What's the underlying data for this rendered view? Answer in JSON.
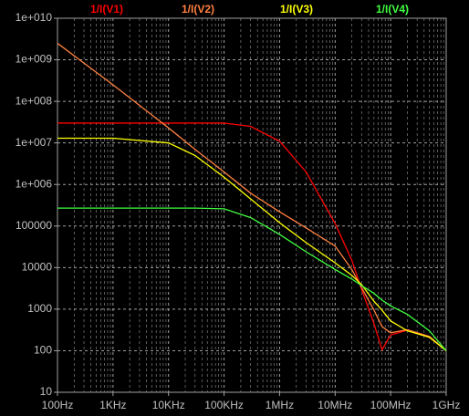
{
  "chart_data": {
    "type": "line",
    "log_x": true,
    "log_y": true,
    "grid": true,
    "minor_grid": true,
    "xlim": [
      100,
      1000000000
    ],
    "ylim": [
      10,
      10000000000
    ],
    "xticks": [
      {
        "value": 100,
        "label": "100Hz"
      },
      {
        "value": 1000,
        "label": "1KHz"
      },
      {
        "value": 10000,
        "label": "10KHz"
      },
      {
        "value": 100000,
        "label": "100KHz"
      },
      {
        "value": 1000000,
        "label": "1MHz"
      },
      {
        "value": 10000000,
        "label": "10MHz"
      },
      {
        "value": 100000000,
        "label": "100MHz"
      },
      {
        "value": 1000000000,
        "label": "1GHz"
      }
    ],
    "yticks": [
      10,
      100,
      1000,
      10000,
      100000,
      {
        "value": 1000000,
        "label": "1e+006"
      },
      {
        "value": 10000000,
        "label": "1e+007"
      },
      {
        "value": 100000000,
        "label": "1e+008"
      },
      {
        "value": 1000000000,
        "label": "1e+009"
      },
      {
        "value": 10000000000,
        "label": "1e+010"
      }
    ],
    "x": [
      100,
      1000,
      10000,
      30000,
      100000,
      300000,
      1000000,
      3000000,
      10000000,
      20000000,
      30000000,
      50000000,
      70000000,
      100000000,
      200000000,
      500000000,
      1000000000
    ],
    "series": [
      {
        "name": "1/I(V1)",
        "color": "#ff0000",
        "values": [
          30000000,
          30000000,
          30000000,
          30000000,
          30000000,
          25000000,
          11000000,
          2000000,
          115000,
          15000,
          3000,
          450,
          105,
          240,
          310,
          210,
          100
        ]
      },
      {
        "name": "1/I(V2)",
        "color": "#ff8040",
        "values": [
          2500000000,
          250000000,
          23000000,
          7000000,
          2000000,
          620000,
          220000,
          90000,
          33000,
          9000,
          3300,
          950,
          380,
          270,
          320,
          220,
          100
        ]
      },
      {
        "name": "1/I(V3)",
        "color": "#ffff00",
        "values": [
          13000000,
          13000000,
          10000000,
          5000000,
          1500000,
          450000,
          120000,
          40000,
          13000,
          6500,
          3900,
          1550,
          940,
          520,
          300,
          210,
          100
        ]
      },
      {
        "name": "1/I(V4)",
        "color": "#40ff40",
        "values": [
          270000,
          270000,
          270000,
          270000,
          260000,
          160000,
          63000,
          24000,
          9000,
          5300,
          3700,
          2400,
          1650,
          1200,
          750,
          300,
          100
        ]
      }
    ]
  }
}
